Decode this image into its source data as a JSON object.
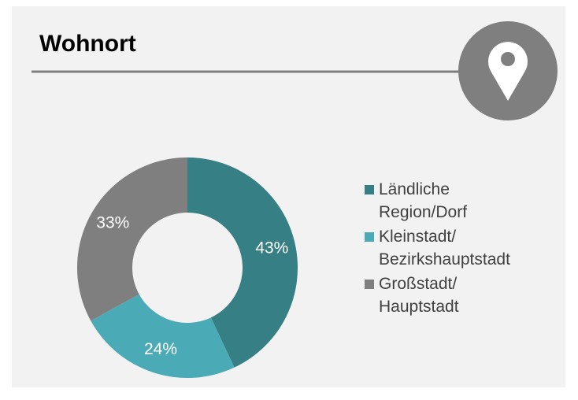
{
  "chart_data": {
    "type": "donut",
    "title": "Wohnort",
    "categories": [
      "Ländliche\nRegion/Dorf",
      "Kleinstadt/\nBezirkshauptstadt",
      "Großstadt/\nHauptstadt"
    ],
    "values": [
      43,
      24,
      33
    ],
    "value_labels": [
      "43%",
      "24%",
      "33%"
    ],
    "colors": [
      "#367f85",
      "#4aabb6",
      "#7f7f7f"
    ]
  }
}
